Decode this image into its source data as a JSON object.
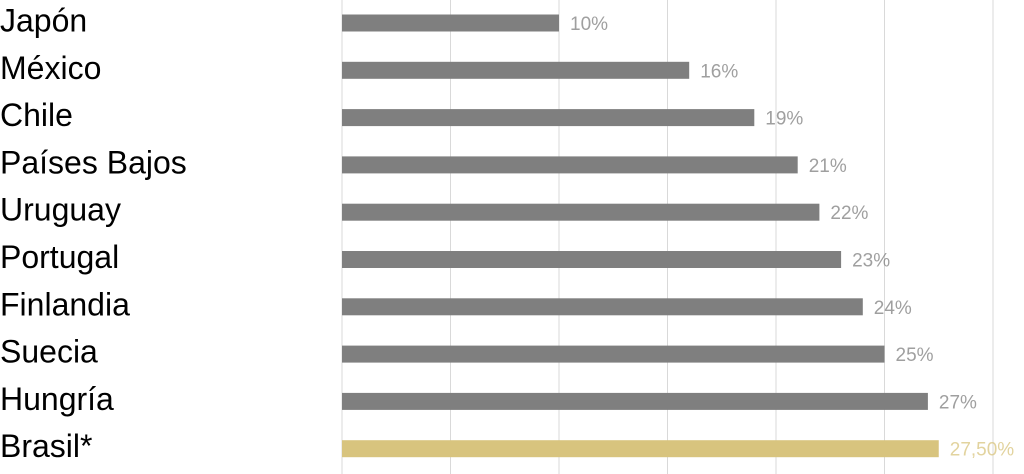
{
  "chart_data": {
    "type": "bar",
    "orientation": "horizontal",
    "categories": [
      "Japón",
      "México",
      "Chile",
      "Países Bajos",
      "Uruguay",
      "Portugal",
      "Finlandia",
      "Suecia",
      "Hungría",
      "Brasil*"
    ],
    "values": [
      10,
      16,
      19,
      21,
      22,
      23,
      24,
      25,
      27,
      27.5
    ],
    "value_labels": [
      "10%",
      "16%",
      "19%",
      "21%",
      "22%",
      "23%",
      "24%",
      "25%",
      "27%",
      "27,50%"
    ],
    "colors": [
      "#7f7f7f",
      "#7f7f7f",
      "#7f7f7f",
      "#7f7f7f",
      "#7f7f7f",
      "#7f7f7f",
      "#7f7f7f",
      "#7f7f7f",
      "#7f7f7f",
      "#d8c47e"
    ],
    "xlim": [
      0,
      30
    ],
    "xticks": [
      0,
      5,
      10,
      15,
      20,
      25,
      30
    ],
    "grid": true
  }
}
